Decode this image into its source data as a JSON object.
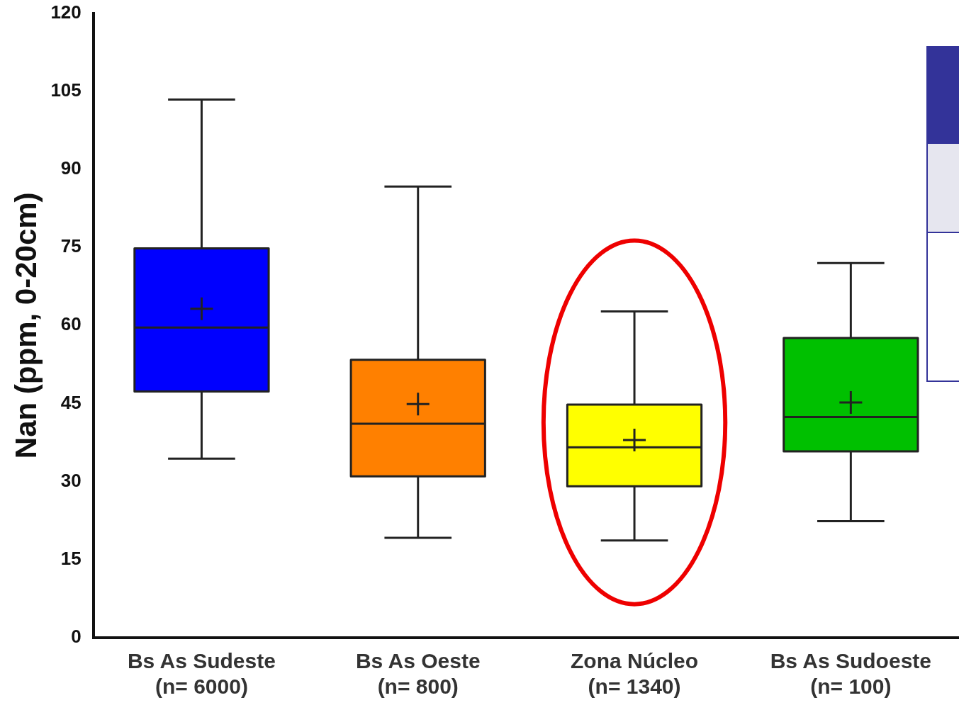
{
  "chart_data": {
    "type": "box",
    "ylabel": "Nan (ppm, 0-20cm)",
    "categories": [
      "Bs As Sudeste\n(n= 6000)",
      "Bs As Oeste\n(n= 800)",
      "Zona Núcleo\n(n= 1340)",
      "Bs As Sudoeste\n(n= 100)"
    ],
    "colors": [
      "#0000ff",
      "#ff8000",
      "#ffff00",
      "#00c000"
    ],
    "boxes": [
      {
        "low": 34.4,
        "q1": 47.3,
        "median": 59.6,
        "q3": 74.8,
        "high": 103.4,
        "mean": 63.2
      },
      {
        "low": 19.2,
        "q1": 31.0,
        "median": 41.1,
        "q3": 53.4,
        "high": 86.7,
        "mean": 44.9
      },
      {
        "low": 18.7,
        "q1": 29.1,
        "median": 36.6,
        "q3": 44.8,
        "high": 62.7,
        "mean": 38.0
      },
      {
        "low": 22.4,
        "q1": 35.8,
        "median": 42.4,
        "q3": 57.6,
        "high": 72.0,
        "mean": 45.2
      }
    ],
    "ylim": [
      0,
      120
    ],
    "yticks": [
      0,
      15,
      30,
      45,
      60,
      75,
      90,
      105,
      120
    ],
    "grid": false,
    "legend": false
  }
}
